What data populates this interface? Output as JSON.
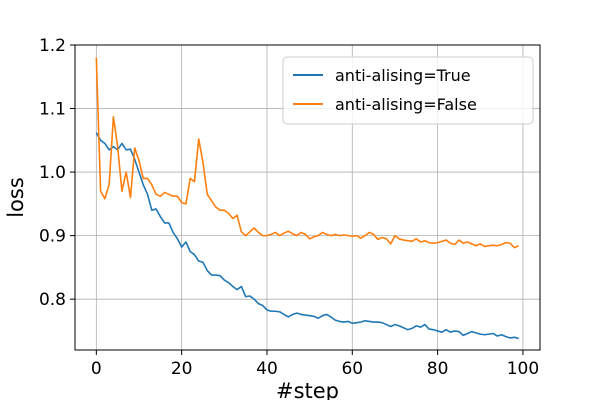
{
  "chart_data": {
    "type": "line",
    "xlabel": "#step",
    "ylabel": "loss",
    "xlim": [
      -5,
      104
    ],
    "ylim": [
      0.72,
      1.2
    ],
    "xticks": [
      0,
      20,
      40,
      60,
      80,
      100
    ],
    "yticks": [
      0.8,
      0.9,
      1.0,
      1.1,
      1.2
    ],
    "xtick_labels": [
      "0",
      "20",
      "40",
      "60",
      "80",
      "100"
    ],
    "ytick_labels": [
      "0.8",
      "0.9",
      "1.0",
      "1.1",
      "1.2"
    ],
    "grid": true,
    "legend_position": "top-right",
    "x": [
      0,
      1,
      2,
      3,
      4,
      5,
      6,
      7,
      8,
      9,
      10,
      11,
      12,
      13,
      14,
      15,
      16,
      17,
      18,
      19,
      20,
      21,
      22,
      23,
      24,
      25,
      26,
      27,
      28,
      29,
      30,
      31,
      32,
      33,
      34,
      35,
      36,
      37,
      38,
      39,
      40,
      41,
      42,
      43,
      44,
      45,
      46,
      47,
      48,
      49,
      50,
      51,
      52,
      53,
      54,
      55,
      56,
      57,
      58,
      59,
      60,
      61,
      62,
      63,
      64,
      65,
      66,
      67,
      68,
      69,
      70,
      71,
      72,
      73,
      74,
      75,
      76,
      77,
      78,
      79,
      80,
      81,
      82,
      83,
      84,
      85,
      86,
      87,
      88,
      89,
      90,
      91,
      92,
      93,
      94,
      95,
      96,
      97,
      98,
      99
    ],
    "series": [
      {
        "name": "anti-alising=True",
        "color": "#1f77b4",
        "values": [
          1.062,
          1.05,
          1.045,
          1.035,
          1.04,
          1.035,
          1.045,
          1.035,
          1.036,
          1.02,
          1.0,
          0.98,
          0.965,
          0.94,
          0.942,
          0.93,
          0.92,
          0.92,
          0.905,
          0.895,
          0.882,
          0.89,
          0.875,
          0.87,
          0.86,
          0.858,
          0.845,
          0.838,
          0.838,
          0.837,
          0.83,
          0.826,
          0.82,
          0.815,
          0.82,
          0.804,
          0.805,
          0.8,
          0.793,
          0.79,
          0.783,
          0.781,
          0.781,
          0.78,
          0.776,
          0.772,
          0.776,
          0.778,
          0.776,
          0.775,
          0.774,
          0.773,
          0.77,
          0.774,
          0.776,
          0.772,
          0.767,
          0.765,
          0.764,
          0.765,
          0.762,
          0.763,
          0.764,
          0.766,
          0.765,
          0.764,
          0.764,
          0.763,
          0.76,
          0.757,
          0.76,
          0.758,
          0.755,
          0.752,
          0.754,
          0.758,
          0.756,
          0.76,
          0.753,
          0.752,
          0.75,
          0.748,
          0.752,
          0.748,
          0.75,
          0.749,
          0.743,
          0.746,
          0.749,
          0.747,
          0.745,
          0.744,
          0.745,
          0.746,
          0.742,
          0.744,
          0.741,
          0.739,
          0.74,
          0.738
        ]
      },
      {
        "name": "anti-alising=False",
        "color": "#ff7f0e",
        "values": [
          1.18,
          0.97,
          0.958,
          0.98,
          1.087,
          1.04,
          0.97,
          1.0,
          0.96,
          1.038,
          1.018,
          0.99,
          0.99,
          0.98,
          0.965,
          0.962,
          0.968,
          0.965,
          0.962,
          0.962,
          0.952,
          0.95,
          0.99,
          0.985,
          1.052,
          1.015,
          0.965,
          0.955,
          0.945,
          0.94,
          0.94,
          0.935,
          0.927,
          0.932,
          0.906,
          0.9,
          0.906,
          0.912,
          0.905,
          0.9,
          0.9,
          0.902,
          0.905,
          0.9,
          0.904,
          0.907,
          0.903,
          0.9,
          0.905,
          0.902,
          0.895,
          0.898,
          0.9,
          0.905,
          0.902,
          0.9,
          0.902,
          0.9,
          0.901,
          0.9,
          0.899,
          0.9,
          0.896,
          0.9,
          0.905,
          0.902,
          0.894,
          0.897,
          0.895,
          0.887,
          0.9,
          0.895,
          0.893,
          0.892,
          0.891,
          0.895,
          0.89,
          0.892,
          0.889,
          0.888,
          0.889,
          0.891,
          0.893,
          0.888,
          0.886,
          0.893,
          0.888,
          0.89,
          0.887,
          0.884,
          0.887,
          0.883,
          0.884,
          0.885,
          0.884,
          0.886,
          0.889,
          0.888,
          0.881,
          0.884
        ]
      }
    ]
  }
}
